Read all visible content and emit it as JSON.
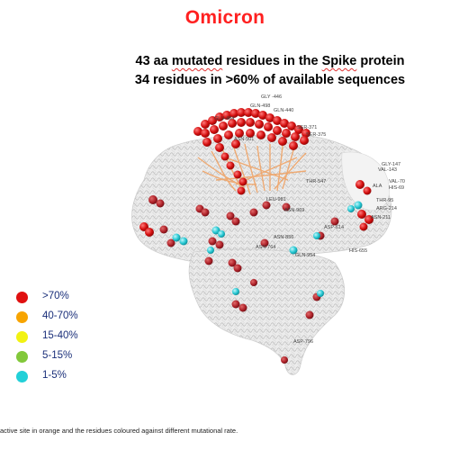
{
  "title": "Omicron",
  "subtitle_line1": [
    "43 aa ",
    "mutated",
    " residues in the ",
    "Spike",
    " protein"
  ],
  "subtitle_line2": "34 residues in >60% of available sequences",
  "residue_labels": [
    "GLY -446",
    "GLN-498",
    "GLN-440",
    "GLU-484",
    "SER-371",
    "SER-375",
    "ASN-501",
    "GLY-147",
    "VAL-143",
    "VAL-70",
    "HIS-69",
    "ALA",
    "THR-95",
    "ARG-214",
    "ASN-211",
    "THR-547",
    "LEU-981",
    "ASN-969",
    "ASP-614",
    "ASN-856",
    "ASN-764",
    "GLN-954",
    "HIS-655",
    "ASP-796"
  ],
  "legend": [
    {
      "label": ">70%",
      "color": "#e01010"
    },
    {
      "label": "40-70%",
      "color": "#f7a400"
    },
    {
      "label": "15-40%",
      "color": "#f2f212"
    },
    {
      "label": "5-15%",
      "color": "#82c83a"
    },
    {
      "label": "1-5%",
      "color": "#22d0d8"
    }
  ],
  "caption": "active site in orange and the residues coloured against different mutational rate."
}
